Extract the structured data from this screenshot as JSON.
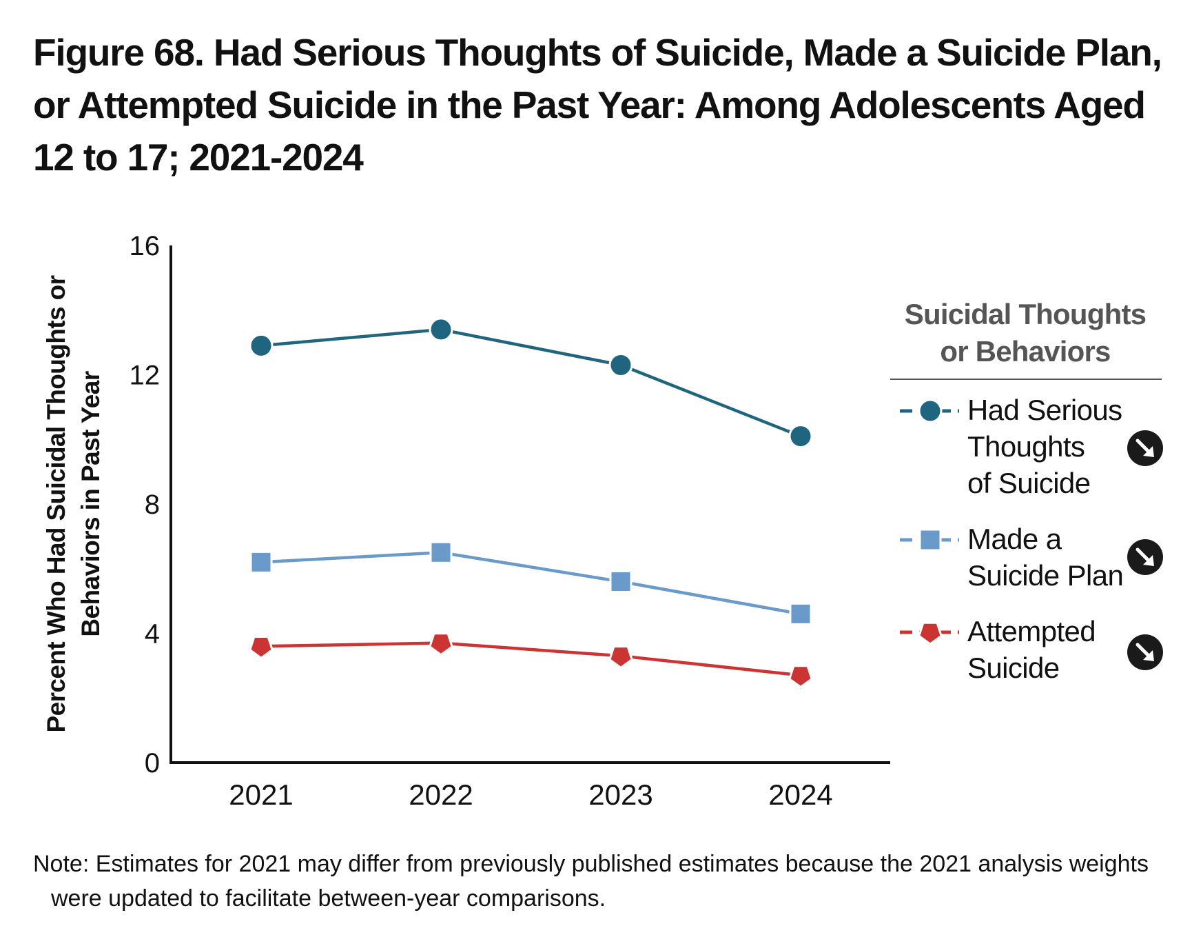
{
  "title": "Figure 68. Had Serious Thoughts of Suicide, Made a Suicide Plan, or Attempted Suicide in the Past Year: Among Adolescents Aged 12 to 17; 2021-2024",
  "note": "Note: Estimates for 2021 may differ from previously published estimates because the 2021 analysis weights were updated to facilitate between-year comparisons.",
  "chart_data": {
    "type": "line",
    "title": "Figure 68. Had Serious Thoughts of Suicide, Made a Suicide Plan, or Attempted Suicide in the Past Year: Among Adolescents Aged 12 to 17; 2021-2024",
    "categories": [
      "2021",
      "2022",
      "2023",
      "2024"
    ],
    "ylabel_lines": [
      "Percent Who Had Suicidal Thoughts or",
      "Behaviors in Past Year"
    ],
    "xlabel": "",
    "ylim": [
      0,
      16
    ],
    "yticks": [
      "0",
      "4",
      "8",
      "12",
      "16"
    ],
    "grid": false,
    "legend_position": "right",
    "legend_title_lines": [
      "Suicidal Thoughts",
      "or Behaviors"
    ],
    "series": [
      {
        "name": "Had Serious Thoughts of Suicide",
        "legend_lines": [
          "Had Serious",
          "Thoughts",
          "of Suicide"
        ],
        "marker": "circle",
        "color": "#1f6580",
        "trend": "decrease",
        "values": [
          12.9,
          13.4,
          12.3,
          10.1
        ]
      },
      {
        "name": "Made a Suicide Plan",
        "legend_lines": [
          "Made a",
          "Suicide Plan"
        ],
        "marker": "square",
        "color": "#6a9ac9",
        "trend": "decrease",
        "values": [
          6.2,
          6.5,
          5.6,
          4.6
        ]
      },
      {
        "name": "Attempted Suicide",
        "legend_lines": [
          "Attempted",
          "Suicide"
        ],
        "marker": "pentagon",
        "color": "#cc3333",
        "trend": "decrease",
        "values": [
          3.6,
          3.7,
          3.3,
          2.7
        ]
      }
    ]
  },
  "icons": {
    "trend_marker": "down-right-arrow-icon"
  },
  "colors": {
    "axis": "#111111",
    "legend_title": "#555555",
    "legend_rule": "#555555",
    "trend_badge": "#1a1a1a"
  }
}
